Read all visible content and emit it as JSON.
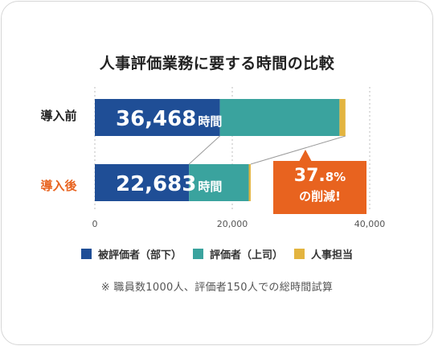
{
  "chart_data": {
    "type": "bar",
    "orientation": "horizontal",
    "stacked": true,
    "title": "人事評価業務に要する時間の比較",
    "categories": [
      "導入前",
      "導入後"
    ],
    "series": [
      {
        "name": "被評価者（部下）",
        "values": [
          18200,
          13700
        ]
      },
      {
        "name": "評価者（上司）",
        "values": [
          17400,
          8700
        ]
      },
      {
        "name": "人事担当",
        "values": [
          868,
          283
        ]
      }
    ],
    "totals": [
      36468,
      22683
    ],
    "total_labels": [
      {
        "number": "36,468",
        "unit": "時間"
      },
      {
        "number": "22,683",
        "unit": "時間"
      }
    ],
    "xlim": [
      0,
      40000
    ],
    "xticks": [
      0,
      20000,
      40000
    ],
    "xtick_labels": [
      "0",
      "20,000",
      "40,000"
    ],
    "grid": "vertical dotted",
    "legend_position": "bottom",
    "colors": [
      "#1f4e96",
      "#3aa39e",
      "#e3b43f"
    ],
    "category_colors": [
      "#222222",
      "#e8631f"
    ],
    "annotation": {
      "value": "37.",
      "value_small": "8%",
      "text": "の削減!",
      "color": "#e8631f"
    },
    "note": "※ 職員数1000人、評価者150人での総時間試算"
  }
}
